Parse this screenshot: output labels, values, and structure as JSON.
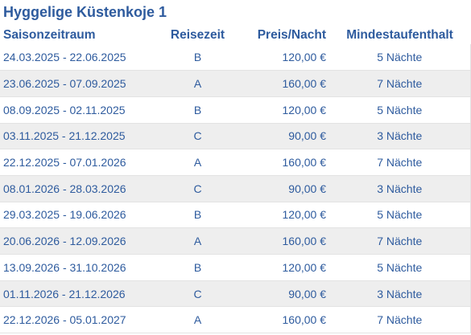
{
  "title": "Hyggelige Küstenkoje 1",
  "table": {
    "headers": {
      "season": "Saisonzeitraum",
      "travel_time": "Reisezeit",
      "price": "Preis/Nacht",
      "min_stay": "Mindestaufenthalt"
    },
    "rows": [
      {
        "season": "24.03.2025 - 22.06.2025",
        "travel_time": "B",
        "price": "120,00 €",
        "min_stay": "5 Nächte"
      },
      {
        "season": "23.06.2025 - 07.09.2025",
        "travel_time": "A",
        "price": "160,00 €",
        "min_stay": "7 Nächte"
      },
      {
        "season": "08.09.2025 - 02.11.2025",
        "travel_time": "B",
        "price": "120,00 €",
        "min_stay": "5 Nächte"
      },
      {
        "season": "03.11.2025 - 21.12.2025",
        "travel_time": "C",
        "price": "90,00 €",
        "min_stay": "3 Nächte"
      },
      {
        "season": "22.12.2025 - 07.01.2026",
        "travel_time": "A",
        "price": "160,00 €",
        "min_stay": "7 Nächte"
      },
      {
        "season": "08.01.2026 - 28.03.2026",
        "travel_time": "C",
        "price": "90,00 €",
        "min_stay": "3 Nächte"
      },
      {
        "season": "29.03.2025 - 19.06.2026",
        "travel_time": "B",
        "price": "120,00 €",
        "min_stay": "5 Nächte"
      },
      {
        "season": "20.06.2026 - 12.09.2026",
        "travel_time": "A",
        "price": "160,00 €",
        "min_stay": "7 Nächte"
      },
      {
        "season": "13.09.2026 - 31.10.2026",
        "travel_time": "B",
        "price": "120,00 €",
        "min_stay": "5 Nächte"
      },
      {
        "season": "01.11.2026 - 21.12.2026",
        "travel_time": "C",
        "price": "90,00 €",
        "min_stay": "3 Nächte"
      },
      {
        "season": "22.12.2026 - 05.01.2027",
        "travel_time": "A",
        "price": "160,00 €",
        "min_stay": "7 Nächte"
      }
    ]
  },
  "colors": {
    "text": "#2e5b9e",
    "row_alt": "#eeeeee",
    "row_border": "#e3e3e3"
  }
}
